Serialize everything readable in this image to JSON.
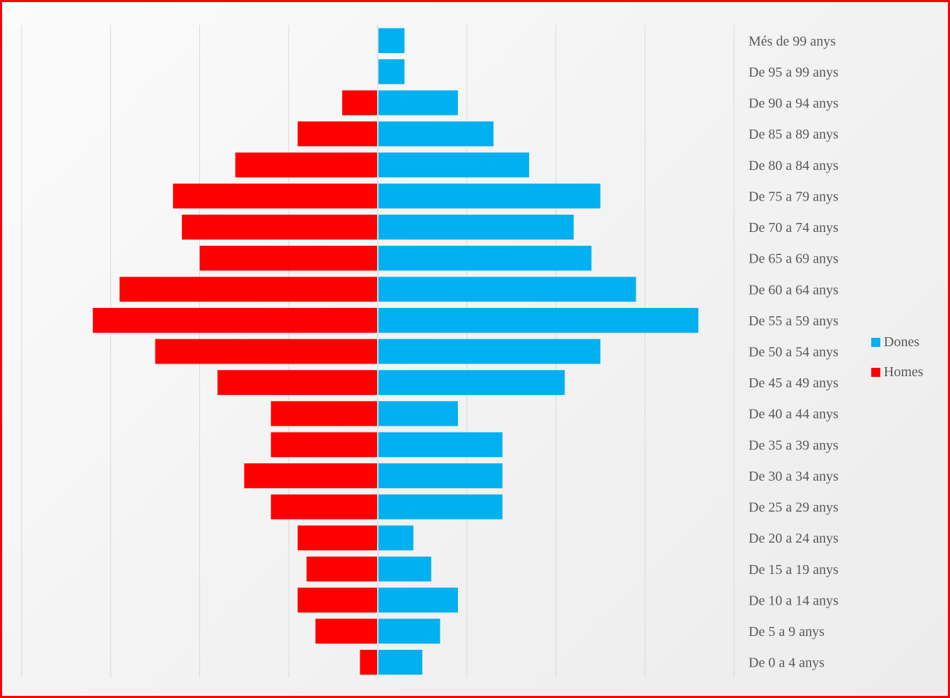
{
  "chart_data": {
    "type": "bar",
    "orientation": "horizontal",
    "layout": "population-pyramid",
    "categories": [
      "De 0 a 4 anys",
      "De 5 a 9 anys",
      "De 10 a 14 anys",
      "De 15 a 19 anys",
      "De 20 a 24 anys",
      "De 25 a 29 anys",
      "De 30 a 34 anys",
      "De 35 a 39 anys",
      "De 40 a 44 anys",
      "De 45 a 49 anys",
      "De 50 a 54 anys",
      "De 55 a 59 anys",
      "De 60 a 64 anys",
      "De 65 a 69 anys",
      "De 70 a 74 anys",
      "De 75 a 79 anys",
      "De 80 a 84 anys",
      "De 85 a 89 anys",
      "De 90 a 94 anys",
      "De 95 a 99 anys",
      "Més de 99 anys"
    ],
    "series": [
      {
        "name": "Dones",
        "color": "#00b0f0",
        "values": [
          5,
          7,
          9,
          6,
          4,
          14,
          14,
          14,
          9,
          21,
          25,
          36,
          29,
          24,
          22,
          25,
          17,
          13,
          9,
          3,
          3
        ]
      },
      {
        "name": "Homes",
        "color": "#ff0000",
        "values": [
          -2,
          -7,
          -9,
          -8,
          -9,
          -12,
          -15,
          -12,
          -12,
          -18,
          -25,
          -32,
          -29,
          -20,
          -22,
          -23,
          -16,
          -9,
          -4,
          0,
          0
        ]
      }
    ],
    "xlim": [
      -40,
      40
    ],
    "grid": true,
    "legend_position": "right",
    "axis_tick_labels_visible": false
  }
}
